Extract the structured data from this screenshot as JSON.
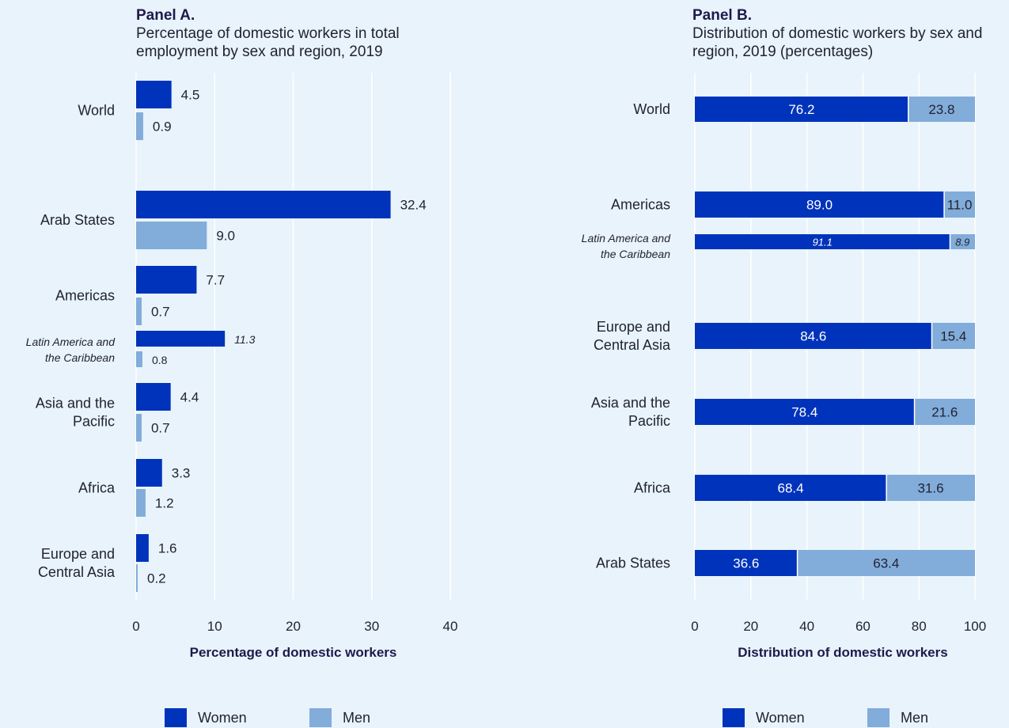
{
  "colors": {
    "women": "#0033bb",
    "men": "#82acd9",
    "grid": "#ffffff",
    "background": "#e8f3fb"
  },
  "legend": {
    "women": "Women",
    "men": "Men"
  },
  "chart_data": [
    {
      "type": "bar",
      "orientation": "horizontal",
      "title": "Panel A.",
      "subtitle": "Percentage of domestic workers in total employment by sex and region, 2019",
      "xlabel": "Percentage of domestic workers",
      "ylabel": "",
      "xlim": [
        0,
        40
      ],
      "xticks": [
        "0",
        "10",
        "20",
        "30",
        "40"
      ],
      "grid": true,
      "legend_position": "bottom",
      "categories": [
        "World",
        "Arab States",
        "Americas",
        "Latin America and the Caribbean",
        "Asia and the Pacific",
        "Africa",
        "Europe and Central Asia"
      ],
      "category_lines": [
        [
          "World"
        ],
        [
          "Arab States"
        ],
        [
          "Americas"
        ],
        [
          "Latin America and",
          "the Caribbean"
        ],
        [
          "Asia and the",
          "Pacific"
        ],
        [
          "Africa"
        ],
        [
          "Europe and",
          "Central Asia"
        ]
      ],
      "series": [
        {
          "name": "Women",
          "values": [
            4.5,
            32.4,
            7.7,
            11.3,
            4.4,
            3.3,
            1.6
          ],
          "labels": [
            "4.5",
            "32.4",
            "7.7",
            "11.3",
            "4.4",
            "3.3",
            "1.6"
          ]
        },
        {
          "name": "Men",
          "values": [
            0.9,
            9.0,
            0.7,
            0.8,
            0.7,
            1.2,
            0.2
          ],
          "labels": [
            "0.9",
            "9.0",
            "0.7",
            "0.8",
            "0.7",
            "1.2",
            "0.2"
          ]
        }
      ]
    },
    {
      "type": "bar",
      "orientation": "horizontal",
      "stacked": true,
      "title": "Panel B.",
      "subtitle": "Distribution of domestic workers by sex and region, 2019 (percentages)",
      "xlabel": "Distribution of domestic workers",
      "ylabel": "",
      "xlim": [
        0,
        100
      ],
      "xticks": [
        "0",
        "20",
        "40",
        "60",
        "80",
        "100"
      ],
      "grid": true,
      "legend_position": "bottom",
      "categories": [
        "World",
        "Americas",
        "Latin America and the Caribbean",
        "Europe and Central Asia",
        "Asia and the Pacific",
        "Africa",
        "Arab States"
      ],
      "category_lines": [
        [
          "World"
        ],
        [
          "Americas"
        ],
        [
          "Latin America and",
          "the Caribbean"
        ],
        [
          "Europe and",
          "Central Asia"
        ],
        [
          "Asia and the",
          "Pacific"
        ],
        [
          "Africa"
        ],
        [
          "Arab States"
        ]
      ],
      "series": [
        {
          "name": "Women",
          "values": [
            76.2,
            89.0,
            91.1,
            84.6,
            78.4,
            68.4,
            36.6
          ],
          "labels": [
            "76.2",
            "89.0",
            "91.1",
            "84.6",
            "78.4",
            "68.4",
            "36.6"
          ]
        },
        {
          "name": "Men",
          "values": [
            23.8,
            11.0,
            8.9,
            15.4,
            21.6,
            31.6,
            63.4
          ],
          "labels": [
            "23.8",
            "11.0",
            "8.9",
            "15.4",
            "21.6",
            "31.6",
            "63.4"
          ]
        }
      ]
    }
  ]
}
